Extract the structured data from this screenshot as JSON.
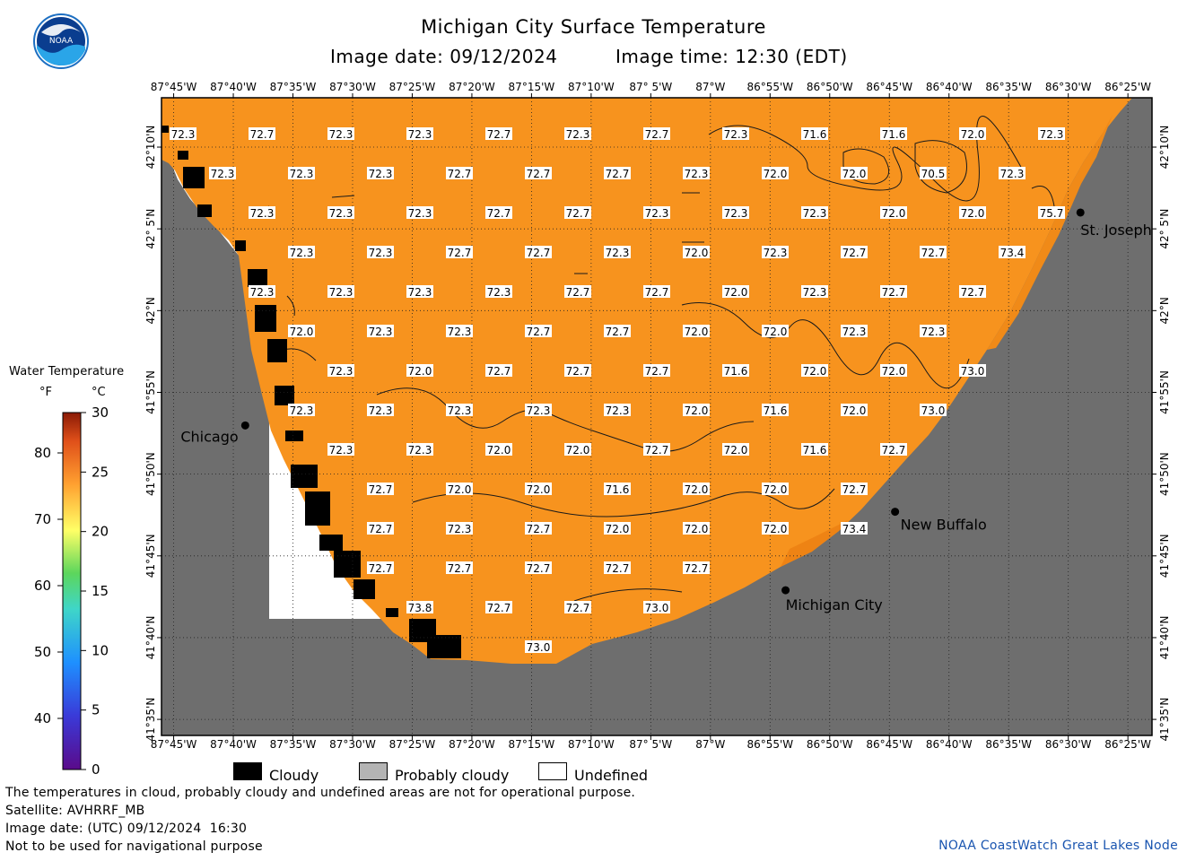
{
  "header": {
    "title": "Michigan City Surface Temperature",
    "image_date": "Image date: 09/12/2024",
    "image_time": "Image time: 12:30 (EDT)"
  },
  "logo": {
    "text": "NOAA",
    "icon": "noaa-logo-icon"
  },
  "colors": {
    "water": "#f7931e",
    "land": "#6e6e6e",
    "cloudy": "#000000",
    "probably_cloudy": "#b4b4b4",
    "undefined": "#ffffff"
  },
  "axes": {
    "lon_ticks": [
      "87°45'W",
      "87°40'W",
      "87°35'W",
      "87°30'W",
      "87°25'W",
      "87°20'W",
      "87°15'W",
      "87°10'W",
      "87° 5'W",
      "87°W",
      "86°55'W",
      "86°50'W",
      "86°45'W",
      "86°40'W",
      "86°35'W",
      "86°30'W",
      "86°25'W"
    ],
    "lat_ticks": [
      "42°10'N",
      "42° 5'N",
      "42°N",
      "41°55'N",
      "41°50'N",
      "41°45'N",
      "41°40'N",
      "41°35'N"
    ],
    "lon_range": [
      -87.767,
      -86.383
    ],
    "lat_range": [
      41.567,
      42.217
    ],
    "grid": true
  },
  "cities": [
    {
      "name": "St. Joseph",
      "lon": -86.483,
      "lat": 42.1
    },
    {
      "name": "Chicago",
      "lon": -87.65,
      "lat": 41.883
    },
    {
      "name": "New Buffalo",
      "lon": -86.742,
      "lat": 41.795
    },
    {
      "name": "Michigan City",
      "lon": -86.895,
      "lat": 41.715
    }
  ],
  "legend": {
    "title": "Water Temperature",
    "f_label": "°F",
    "c_label": "°C",
    "f_ticks": [
      "80",
      "70",
      "60",
      "50",
      "40"
    ],
    "c_ticks": [
      "30",
      "25",
      "20",
      "15",
      "10",
      "5",
      "0"
    ],
    "keys": [
      {
        "label": "Cloudy",
        "color": "#000000"
      },
      {
        "label": "Probably cloudy",
        "color": "#b4b4b4"
      },
      {
        "label": "Undefined",
        "color": "#ffffff"
      }
    ]
  },
  "footer": {
    "note": "The temperatures in cloud, probably cloudy and undefined areas are not for operational purpose.",
    "satellite": "Satellite: AVHRRF_MB",
    "utc_date": "Image date: (UTC) 09/12/2024  16:30",
    "nav_warning": "Not to be used for navigational purpose",
    "credit": "NOAA CoastWatch Great Lakes Node"
  },
  "temperature_rows": [
    [
      "72.3",
      "72.7",
      "72.3",
      "72.3",
      "72.7",
      "72.3",
      "72.7",
      "72.3",
      "71.6",
      "71.6",
      "72.0",
      "72.3"
    ],
    [
      "72.3",
      "72.3",
      "72.3",
      "72.7",
      "72.7",
      "72.7",
      "72.3",
      "72.0",
      "72.0",
      "70.5",
      "72.3"
    ],
    [
      "72.3",
      "72.3",
      "72.3",
      "72.7",
      "72.7",
      "72.3",
      "72.3",
      "72.3",
      "72.0",
      "72.0",
      "75.7"
    ],
    [
      "72.3",
      "72.3",
      "72.7",
      "72.7",
      "72.3",
      "72.0",
      "72.3",
      "72.7",
      "72.7",
      "73.4"
    ],
    [
      "72.3",
      "72.3",
      "72.3",
      "72.3",
      "72.7",
      "72.7",
      "72.0",
      "72.3",
      "72.7",
      "72.7"
    ],
    [
      "72.0",
      "72.3",
      "72.3",
      "72.7",
      "72.7",
      "72.0",
      "72.0",
      "72.3",
      "72.3"
    ],
    [
      "72.3",
      "72.0",
      "72.7",
      "72.7",
      "72.7",
      "71.6",
      "72.0",
      "72.0",
      "73.0"
    ],
    [
      "72.3",
      "72.3",
      "72.3",
      "72.3",
      "72.3",
      "72.0",
      "71.6",
      "72.0",
      "73.0"
    ],
    [
      "72.3",
      "72.3",
      "72.0",
      "72.0",
      "72.7",
      "72.0",
      "71.6",
      "72.7"
    ],
    [
      "72.7",
      "72.0",
      "72.0",
      "71.6",
      "72.0",
      "72.0",
      "72.7"
    ],
    [
      "72.7",
      "72.3",
      "72.7",
      "72.0",
      "72.0",
      "72.0",
      "73.4"
    ],
    [
      "72.7",
      "72.7",
      "72.7",
      "72.7",
      "72.7"
    ],
    [
      "73.8",
      "72.7",
      "72.7",
      "73.0"
    ],
    [
      "73.0"
    ]
  ]
}
